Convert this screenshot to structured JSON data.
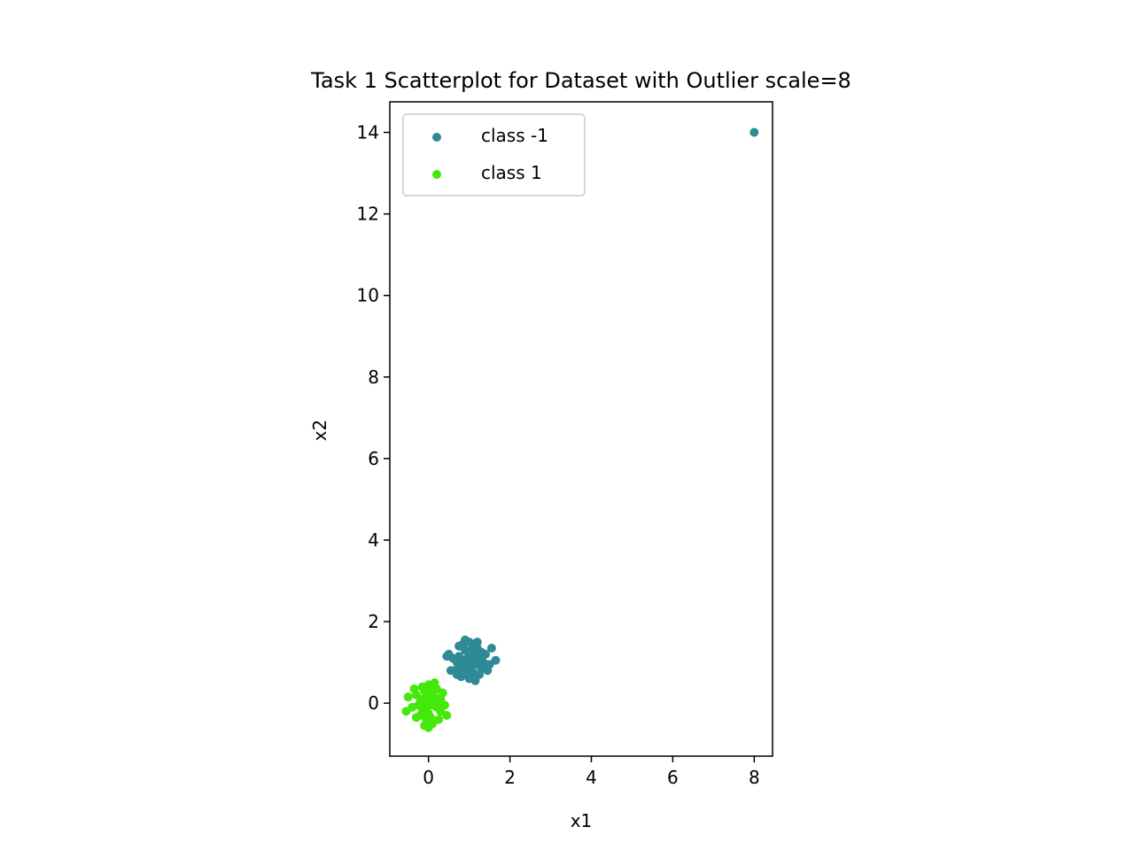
{
  "chart_data": {
    "type": "scatter",
    "title": "Task 1 Scatterplot for Dataset with Outlier scale=8",
    "xlabel": "x1",
    "ylabel": "x2",
    "xlim": [
      -0.95,
      8.45
    ],
    "ylim": [
      -1.3,
      14.75
    ],
    "xticks": [
      0,
      2,
      4,
      6,
      8
    ],
    "yticks": [
      0,
      2,
      4,
      6,
      8,
      10,
      12,
      14
    ],
    "grid": false,
    "legend_position": "top-left",
    "series": [
      {
        "name": "class -1",
        "color": "#2e8b96",
        "points": [
          [
            1.0,
            1.0
          ],
          [
            0.95,
            1.1
          ],
          [
            1.05,
            0.9
          ],
          [
            1.1,
            1.05
          ],
          [
            0.9,
            0.95
          ],
          [
            1.0,
            1.2
          ],
          [
            1.15,
            1.15
          ],
          [
            0.85,
            1.05
          ],
          [
            1.2,
            0.95
          ],
          [
            0.8,
            0.85
          ],
          [
            1.0,
            0.8
          ],
          [
            1.05,
            1.3
          ],
          [
            0.9,
            1.3
          ],
          [
            1.25,
            1.1
          ],
          [
            0.75,
            1.15
          ],
          [
            1.1,
            0.75
          ],
          [
            0.95,
            0.7
          ],
          [
            1.3,
            0.85
          ],
          [
            0.7,
            1.0
          ],
          [
            1.2,
            1.35
          ],
          [
            0.85,
            1.45
          ],
          [
            1.1,
            1.45
          ],
          [
            1.35,
            1.0
          ],
          [
            0.65,
            0.8
          ],
          [
            1.25,
            0.7
          ],
          [
            0.8,
            0.65
          ],
          [
            1.0,
            0.6
          ],
          [
            1.15,
            0.55
          ],
          [
            1.4,
            1.2
          ],
          [
            0.6,
            1.1
          ],
          [
            1.5,
            0.95
          ],
          [
            1.55,
            1.35
          ],
          [
            1.65,
            1.05
          ],
          [
            0.45,
            1.15
          ],
          [
            0.5,
            1.2
          ],
          [
            0.55,
            0.8
          ],
          [
            0.9,
            1.55
          ],
          [
            1.0,
            1.5
          ],
          [
            1.2,
            1.5
          ],
          [
            0.75,
            1.4
          ],
          [
            1.45,
            0.8
          ],
          [
            1.05,
            0.65
          ],
          [
            0.7,
            0.7
          ],
          [
            1.3,
            1.25
          ],
          [
            0.95,
            0.85
          ],
          [
            1.1,
            1.2
          ],
          [
            0.85,
            0.9
          ],
          [
            1.0,
            1.1
          ],
          [
            8.0,
            14.0
          ]
        ]
      },
      {
        "name": "class 1",
        "color": "#44e80a",
        "points": [
          [
            0.0,
            0.0
          ],
          [
            0.05,
            0.1
          ],
          [
            -0.05,
            -0.1
          ],
          [
            0.1,
            -0.05
          ],
          [
            -0.1,
            0.05
          ],
          [
            0.0,
            0.2
          ],
          [
            0.15,
            0.15
          ],
          [
            -0.15,
            -0.15
          ],
          [
            0.2,
            -0.1
          ],
          [
            -0.2,
            0.1
          ],
          [
            0.0,
            -0.25
          ],
          [
            0.1,
            0.3
          ],
          [
            -0.1,
            0.3
          ],
          [
            0.25,
            0.05
          ],
          [
            -0.25,
            -0.05
          ],
          [
            0.05,
            -0.35
          ],
          [
            -0.05,
            -0.4
          ],
          [
            0.3,
            -0.2
          ],
          [
            -0.3,
            0.2
          ],
          [
            0.2,
            0.35
          ],
          [
            -0.2,
            -0.3
          ],
          [
            0.1,
            -0.5
          ],
          [
            -0.1,
            -0.55
          ],
          [
            0.0,
            0.45
          ],
          [
            0.15,
            0.5
          ],
          [
            -0.35,
            0.35
          ],
          [
            -0.5,
            0.15
          ],
          [
            -0.55,
            -0.2
          ],
          [
            0.4,
            -0.05
          ],
          [
            0.45,
            -0.3
          ],
          [
            0.35,
            0.25
          ],
          [
            -0.4,
            -0.1
          ],
          [
            0.05,
            0.35
          ],
          [
            -0.15,
            0.4
          ],
          [
            0.25,
            -0.4
          ],
          [
            0.0,
            -0.6
          ],
          [
            -0.3,
            -0.35
          ],
          [
            0.3,
            0.1
          ],
          [
            -0.05,
            0.15
          ],
          [
            0.1,
            0.05
          ]
        ]
      }
    ]
  }
}
